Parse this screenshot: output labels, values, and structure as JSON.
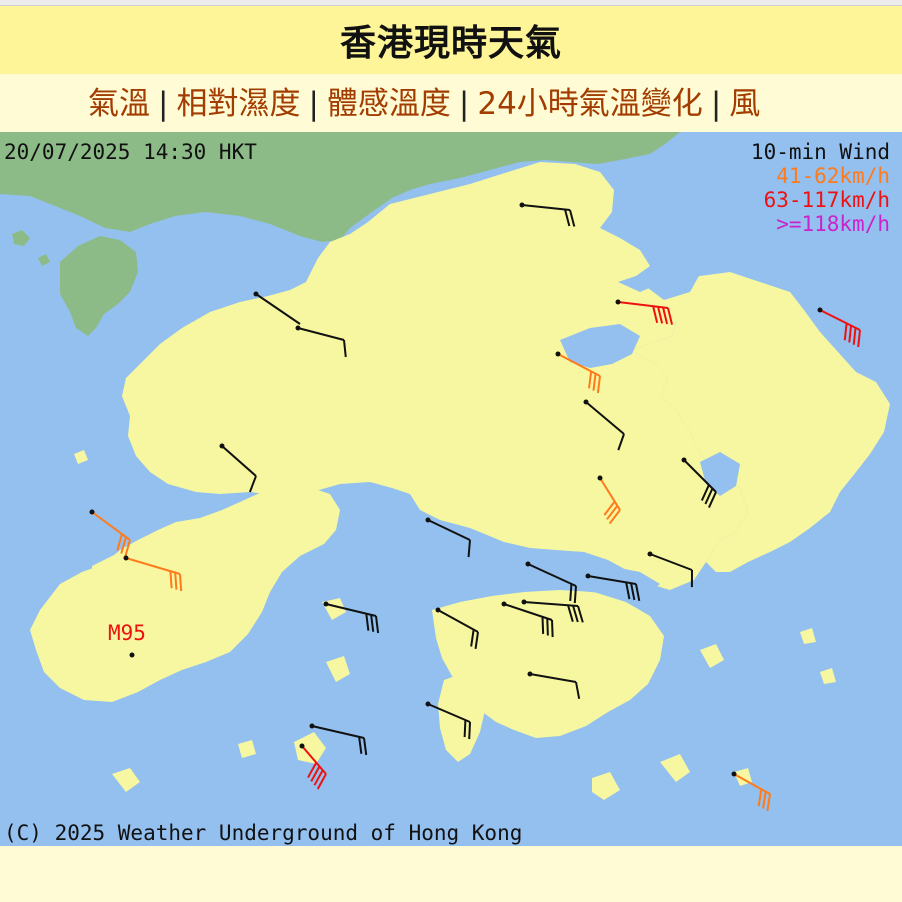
{
  "page": {
    "title": "香港現時天氣"
  },
  "nav": {
    "items": [
      {
        "label": "氣溫"
      },
      {
        "label": "相對濕度"
      },
      {
        "label": "體感溫度"
      },
      {
        "label": "24小時氣溫變化"
      },
      {
        "label": "風"
      }
    ]
  },
  "map": {
    "timestamp": "20/07/2025 14:30 HKT",
    "legend": {
      "title": "10-min Wind",
      "bands": [
        {
          "label": "41-62km/h",
          "color": "#ff7a1a"
        },
        {
          "label": "63-117km/h",
          "color": "#ee1111"
        },
        {
          "label": ">=118km/h",
          "color": "#cc22cc"
        }
      ]
    },
    "station_label": "M95",
    "copyright": "(C) 2025 Weather Underground of Hong Kong",
    "colors": {
      "sea": "#93c0ee",
      "land_hk": "#f6f7a0",
      "land_mainland": "#8dbb88",
      "normal_wind": "#111111",
      "strong_wind": "#ff7a1a",
      "gale_wind": "#ee1111",
      "hurricane_wind": "#cc22cc",
      "station_label": "#ee1111"
    }
  }
}
